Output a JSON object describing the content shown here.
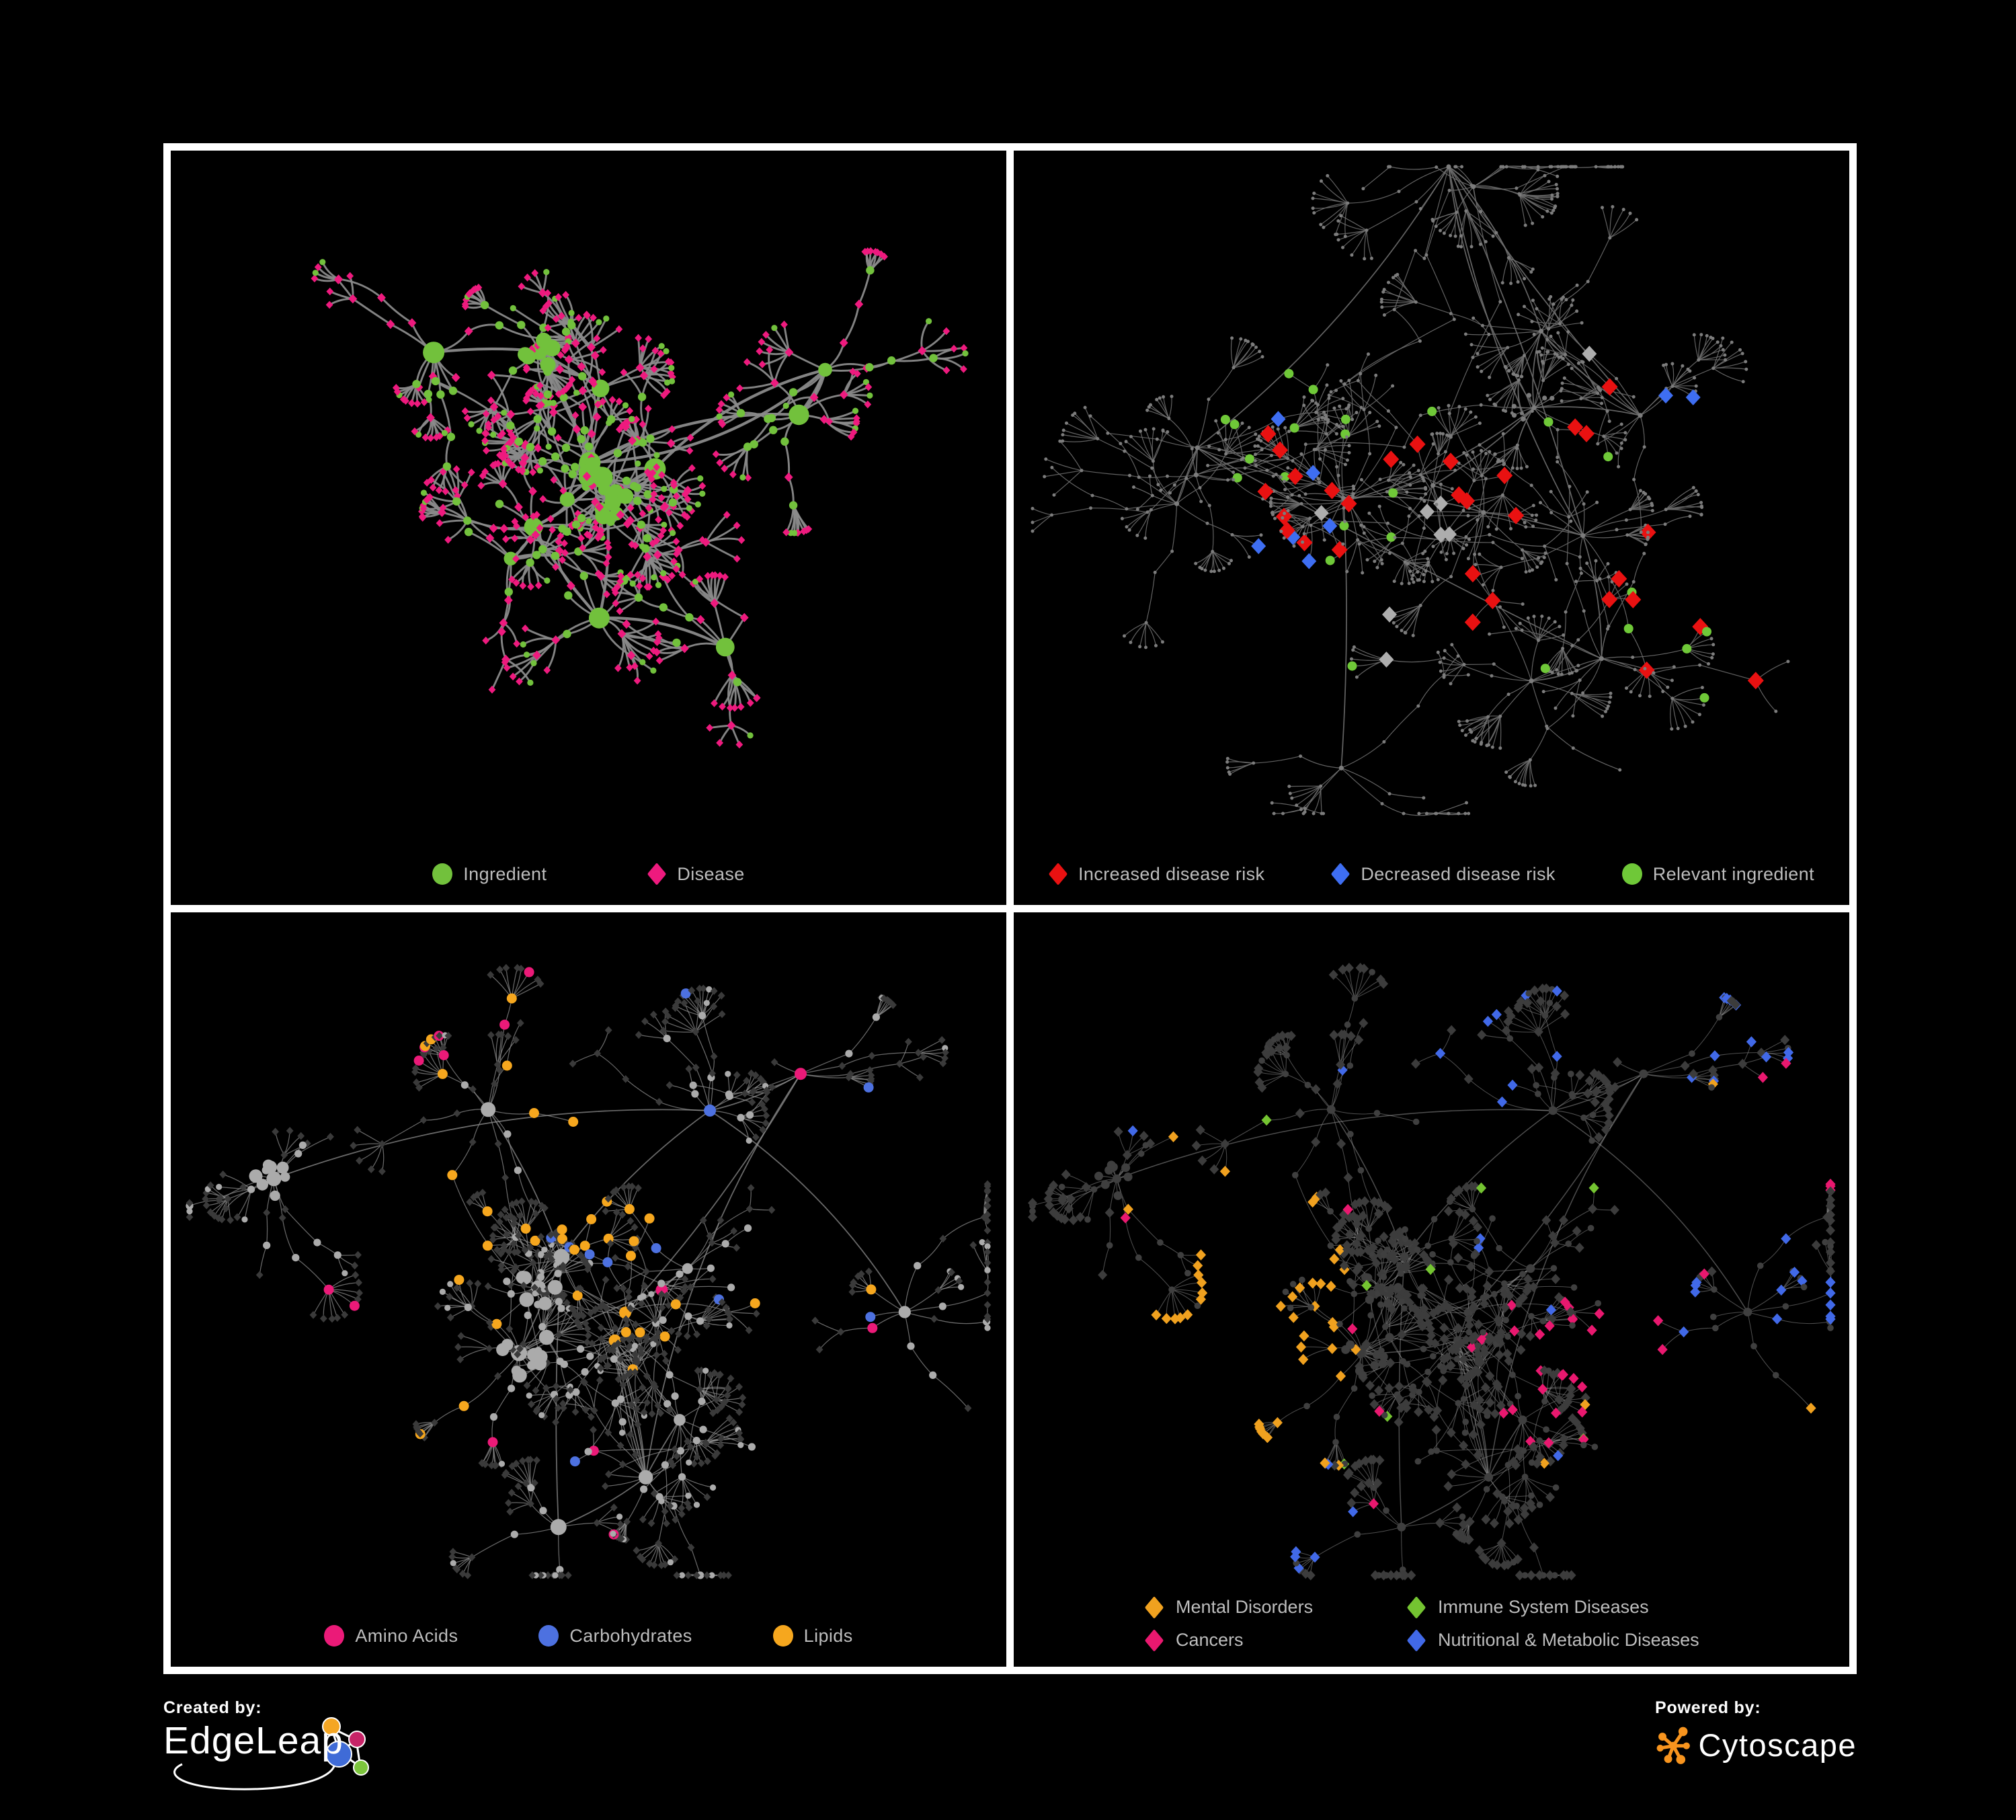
{
  "page": {
    "background": "#000000",
    "frame_border": "#ffffff"
  },
  "panels": [
    {
      "name": "ingredient-disease-network",
      "legend": [
        {
          "label": "Ingredient",
          "shape": "circle",
          "color": "#72C13C"
        },
        {
          "label": "Disease",
          "shape": "diamond",
          "color": "#EE1A7E"
        }
      ],
      "palette": {
        "edge": "#8A8A8A",
        "ingredient": "#72C13C",
        "disease": "#EE1A7E"
      }
    },
    {
      "name": "disease-risk-network",
      "legend": [
        {
          "label": "Increased disease risk",
          "shape": "diamond",
          "color": "#E91111"
        },
        {
          "label": "Decreased disease risk",
          "shape": "diamond",
          "color": "#3E6EF2"
        },
        {
          "label": "Relevant ingredient",
          "shape": "circle",
          "color": "#6FC838"
        }
      ],
      "palette": {
        "edge": "#6D6D6D",
        "base": "#7C7C7C",
        "increased": "#E91111",
        "decreased": "#3E6EF2",
        "unchanged": "#ADADAD",
        "relevant": "#6FC838"
      }
    },
    {
      "name": "nutrient-class-network",
      "legend": [
        {
          "label": "Amino Acids",
          "shape": "circle",
          "color": "#EB1A78"
        },
        {
          "label": "Carbohydrates",
          "shape": "circle",
          "color": "#4D71E0"
        },
        {
          "label": "Lipids",
          "shape": "circle",
          "color": "#F6A71E"
        }
      ],
      "palette": {
        "edge": "#909090",
        "ingredient": "#ABABAB",
        "disease": "#3A3A3A",
        "amino": "#EB1A78",
        "carbohydrate": "#4D71E0",
        "lipid": "#F6A71E"
      }
    },
    {
      "name": "disease-class-network",
      "legend": [
        {
          "label": "Mental Disorders",
          "shape": "diamond",
          "color": "#F0A11F"
        },
        {
          "label": "Immune System Diseases",
          "shape": "diamond",
          "color": "#74C431"
        },
        {
          "label": "Cancers",
          "shape": "diamond",
          "color": "#E9186F"
        },
        {
          "label": "Nutritional & Metabolic Diseases",
          "shape": "diamond",
          "color": "#4169E8"
        }
      ],
      "palette": {
        "edge": "#9A9A9A",
        "ingredient": "#3F3F3F",
        "disease": "#3C3C3C",
        "mental": "#F0A11F",
        "immune": "#74C431",
        "cancer": "#E9186F",
        "nutritional": "#4169E8"
      }
    }
  ],
  "footer": {
    "created_by": {
      "label": "Created by:",
      "brand": "EdgeLeap"
    },
    "powered_by": {
      "label": "Powered by:",
      "brand": "Cytoscape",
      "accent": "#F7941E"
    }
  },
  "chart_data": [
    {
      "type": "network",
      "panel": "top-left",
      "node_classes": [
        {
          "label": "Ingredient",
          "shape": "circle",
          "color": "#72C13C"
        },
        {
          "label": "Disease",
          "shape": "diamond",
          "color": "#EE1A7E"
        }
      ],
      "edges_color": "#8A8A8A",
      "approx_nodes": 660,
      "approx_edges": 690,
      "description": "Ingredient-disease association network; green circle hubs with fans of magenta diamond disease leaves on black background"
    },
    {
      "type": "network",
      "panel": "top-right",
      "node_classes": [
        {
          "label": "Increased disease risk",
          "shape": "diamond",
          "color": "#E91111"
        },
        {
          "label": "Decreased disease risk",
          "shape": "diamond",
          "color": "#3E6EF2"
        },
        {
          "label": "Relevant ingredient",
          "shape": "circle",
          "color": "#6FC838"
        },
        {
          "label": "other node",
          "shape": "dot",
          "color": "#7C7C7C"
        },
        {
          "label": "unchanged disease",
          "shape": "diamond",
          "color": "#ADADAD"
        }
      ],
      "edges_color": "#6D6D6D",
      "approx_nodes": 700,
      "description": "Same topology drawn with tiny grey dots and thin edges; highlighted red / blue / grey diamonds and green circles concentrated in the centre-left, one blue pair at upper right"
    },
    {
      "type": "network",
      "panel": "bottom-left",
      "node_classes": [
        {
          "label": "Amino Acids",
          "shape": "circle",
          "color": "#EB1A78"
        },
        {
          "label": "Carbohydrates",
          "shape": "circle",
          "color": "#4D71E0"
        },
        {
          "label": "Lipids",
          "shape": "circle",
          "color": "#F6A71E"
        },
        {
          "label": "other ingredient",
          "shape": "circle",
          "color": "#ABABAB"
        },
        {
          "label": "disease",
          "shape": "diamond",
          "color": "#3A3A3A"
        }
      ],
      "edges_color": "#909090",
      "approx_nodes": 700,
      "description": "Ingredient circles coloured by nutrient class (lipids clustered top-centre), diseases as small dark diamonds"
    },
    {
      "type": "network",
      "panel": "bottom-right",
      "node_classes": [
        {
          "label": "Mental Disorders",
          "shape": "diamond",
          "color": "#F0A11F"
        },
        {
          "label": "Immune System Diseases",
          "shape": "diamond",
          "color": "#74C431"
        },
        {
          "label": "Cancers",
          "shape": "diamond",
          "color": "#E9186F"
        },
        {
          "label": "Nutritional & Metabolic Diseases",
          "shape": "diamond",
          "color": "#4169E8"
        },
        {
          "label": "other disease",
          "shape": "diamond",
          "color": "#3C3C3C"
        },
        {
          "label": "ingredient",
          "shape": "circle",
          "color": "#3F3F3F"
        }
      ],
      "edges_color": "#9A9A9A",
      "approx_nodes": 700,
      "description": "Disease diamonds coloured by class: dense orange mental-disorder cluster left-centre, magenta cancer cluster centre, blue nutritional/metabolic diamonds scattered right"
    }
  ]
}
